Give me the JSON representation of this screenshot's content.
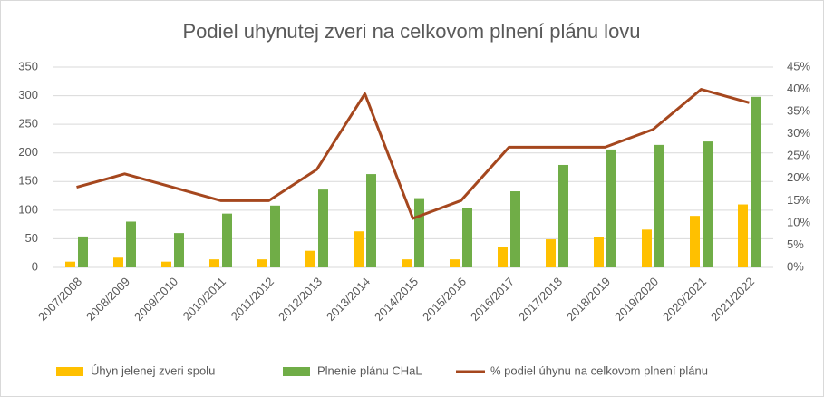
{
  "chart_data": {
    "type": "combo",
    "title": "Podiel uhynutej zveri na celkovom plnení plánu lovu",
    "categories": [
      "2007/2008",
      "2008/2009",
      "2009/2010",
      "2010/2011",
      "2011/2012",
      "2012/2013",
      "2013/2014",
      "2014/2015",
      "2015/2016",
      "2016/2017",
      "2017/2018",
      "2018/2019",
      "2019/2020",
      "2020/2021",
      "2021/2022"
    ],
    "series": [
      {
        "name": "Úhyn jelenej zveri spolu",
        "type": "bar",
        "color": "#ffc000",
        "values": [
          10,
          17,
          10,
          14,
          14,
          29,
          63,
          14,
          14,
          36,
          49,
          53,
          66,
          90,
          110
        ]
      },
      {
        "name": "Plnenie plánu CHaL",
        "type": "bar",
        "color": "#70ad47",
        "values": [
          54,
          80,
          60,
          94,
          108,
          136,
          163,
          121,
          104,
          133,
          179,
          206,
          214,
          220,
          298
        ]
      },
      {
        "name": "% podiel úhynu na celkovom plnení plánu",
        "type": "line",
        "axis": "y2",
        "color": "#a5471e",
        "values": [
          18,
          21,
          18,
          15,
          15,
          22,
          39,
          11,
          15,
          27,
          27,
          27,
          31,
          40,
          37
        ]
      }
    ],
    "ylim": [
      0,
      350
    ],
    "yticks": [
      0,
      50,
      100,
      150,
      200,
      250,
      300,
      350
    ],
    "y2lim": [
      0,
      45
    ],
    "y2ticks": [
      {
        "value": 0,
        "label": "0%"
      },
      {
        "value": 5,
        "label": "5%"
      },
      {
        "value": 10,
        "label": "10%"
      },
      {
        "value": 15,
        "label": "15%"
      },
      {
        "value": 20,
        "label": "20%"
      },
      {
        "value": 25,
        "label": "25%"
      },
      {
        "value": 30,
        "label": "30%"
      },
      {
        "value": 35,
        "label": "35%"
      },
      {
        "value": 40,
        "label": "40%"
      },
      {
        "value": 45,
        "label": "45%"
      }
    ],
    "grid": true,
    "legend": "bottom"
  }
}
